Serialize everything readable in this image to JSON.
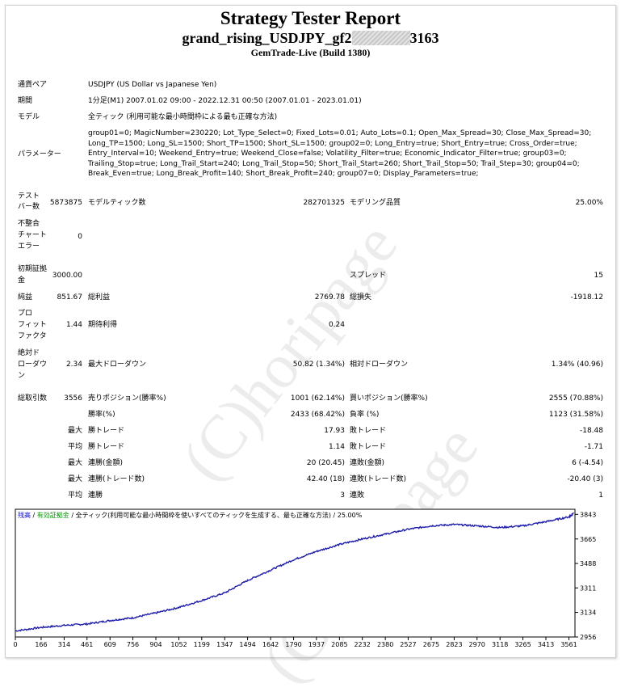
{
  "header": {
    "title": "Strategy Tester Report",
    "ea_name_prefix": "grand_rising_USDJPY_gf2",
    "ea_name_suffix": "3163",
    "server": "GemTrade-Live (Build 1380)"
  },
  "info": {
    "pair_label": "通貨ペア",
    "pair_value": "USDJPY (US Dollar vs Japanese Yen)",
    "period_label": "期間",
    "period_value": "1分足(M1) 2007.01.02 09:00 - 2022.12.31 00:50 (2007.01.01 - 2023.01.01)",
    "model_label": "モデル",
    "model_value": "全ティック (利用可能な最小時間枠による最も正確な方法)",
    "params_label": "パラメーター",
    "params_value": "group01=0; MagicNumber=230220; Lot_Type_Select=0; Fixed_Lots=0.01; Auto_Lots=0.1; Open_Max_Spread=30; Close_Max_Spread=30; Long_TP=1500; Long_SL=1500; Short_TP=1500; Short_SL=1500; group02=0; Long_Entry=true; Short_Entry=true; Cross_Order=true; Entry_Interval=10; Weekend_Entry=true; Weekend_Close=false; Volatility_Filter=true; Economic_Indicator_Filter=true; group03=0; Trailing_Stop=true; Long_Trail_Start=240; Long_Trail_Stop=50; Short_Trail_Start=260; Short_Trail_Stop=50; Trail_Step=30; group04=0; Break_Even=true; Long_Break_Profit=140; Short_Break_Profit=240; group07=0; Display_Parameters=true;"
  },
  "stats": {
    "test_bars_label_1": "テスト",
    "test_bars_label_2": "バー数",
    "test_bars_value": "5873875",
    "model_ticks_label": "モデルティック数",
    "model_ticks_value": "282701325",
    "model_quality_label": "モデリング品質",
    "model_quality_value": "25.00%",
    "mismatch_label_1": "不整合",
    "mismatch_label_2": "チャート",
    "mismatch_label_3": "エラー",
    "mismatch_value": "0",
    "deposit_label_1": "初期証拠",
    "deposit_label_2": "金",
    "deposit_value": "3000.00",
    "spread_label": "スプレッド",
    "spread_value": "15",
    "net_label": "純益",
    "net_value": "851.67",
    "gross_profit_label": "総利益",
    "gross_profit_value": "2769.78",
    "gross_loss_label": "総損失",
    "gross_loss_value": "-1918.12",
    "pf_label_1": "プロ",
    "pf_label_2": "フィット",
    "pf_label_3": "ファクタ",
    "pf_value": "1.44",
    "expected_label": "期待利得",
    "expected_value": "0.24",
    "absdd_label_1": "絶対ド",
    "absdd_label_2": "ローダウ",
    "absdd_label_3": "ン",
    "absdd_value": "2.34",
    "maxdd_label": "最大ドローダウン",
    "maxdd_value": "50.82 (1.34%)",
    "reldd_label": "相対ドローダウン",
    "reldd_value": "1.34% (40.96)",
    "total_trades_label": "総取引数",
    "total_trades_value": "3556",
    "short_pos_label": "売りポジション(勝率%)",
    "short_pos_value": "1001 (62.14%)",
    "long_pos_label": "買いポジション(勝率%)",
    "long_pos_value": "2555 (70.88%)",
    "win_rate_label": "勝率(%)",
    "win_rate_value": "2433 (68.42%)",
    "loss_rate_label": "負率 (%)",
    "loss_rate_value": "1123 (31.58%)",
    "max_label": "最大",
    "win_trade_label": "勝トレード",
    "max_win_value": "17.93",
    "loss_trade_label": "敗トレード",
    "max_loss_value": "-18.48",
    "avg_label": "平均",
    "avg_win_value": "1.14",
    "avg_loss_value": "-1.71",
    "consec_win_amt_label": "連勝(金額)",
    "max_consec_win_amt_value": "20 (20.45)",
    "consec_loss_amt_label": "連敗(金額)",
    "max_consec_loss_amt_value": "6 (-4.54)",
    "consec_win_cnt_label": "連勝(トレード数)",
    "max_consec_win_cnt_value": "42.40 (18)",
    "consec_loss_cnt_label": "連敗(トレード数)",
    "max_consec_loss_cnt_value": "-20.40 (3)",
    "win_streak_label": "連勝",
    "avg_win_streak_value": "3",
    "loss_streak_label": "連敗",
    "avg_loss_streak_value": "1"
  },
  "watermark": "(C)horipage",
  "chart_data": {
    "type": "line",
    "legend": [
      "残高",
      "/",
      "有効証拠金",
      "/",
      "全ティック(利用可能な最小時間枠を使いすべてのティックを生成する、最も正確な方法)",
      "/",
      "25.00%"
    ],
    "legend_colors": [
      "#0000c8",
      "#000000",
      "#009900",
      "#000000",
      "#000000",
      "#000000",
      "#000000"
    ],
    "x_ticks": [
      0,
      166,
      314,
      461,
      609,
      756,
      904,
      1052,
      1199,
      1347,
      1494,
      1642,
      1790,
      1937,
      2085,
      2232,
      2380,
      2527,
      2675,
      2823,
      2970,
      3118,
      3265,
      3413,
      3561
    ],
    "y_ticks": [
      2956,
      3134,
      3311,
      3488,
      3665,
      3843
    ],
    "xlim": [
      0,
      3600
    ],
    "ylim": [
      2956,
      3880
    ],
    "line_color": "#1e1eaa",
    "x": [
      0,
      166,
      314,
      461,
      609,
      756,
      904,
      1052,
      1199,
      1347,
      1494,
      1642,
      1790,
      1937,
      2085,
      2232,
      2380,
      2527,
      2675,
      2823,
      2970,
      3118,
      3265,
      3413,
      3561,
      3590
    ],
    "y": [
      3000,
      3025,
      3040,
      3050,
      3075,
      3095,
      3130,
      3170,
      3220,
      3275,
      3365,
      3440,
      3515,
      3575,
      3625,
      3665,
      3700,
      3735,
      3760,
      3770,
      3760,
      3748,
      3760,
      3790,
      3825,
      3851
    ]
  }
}
